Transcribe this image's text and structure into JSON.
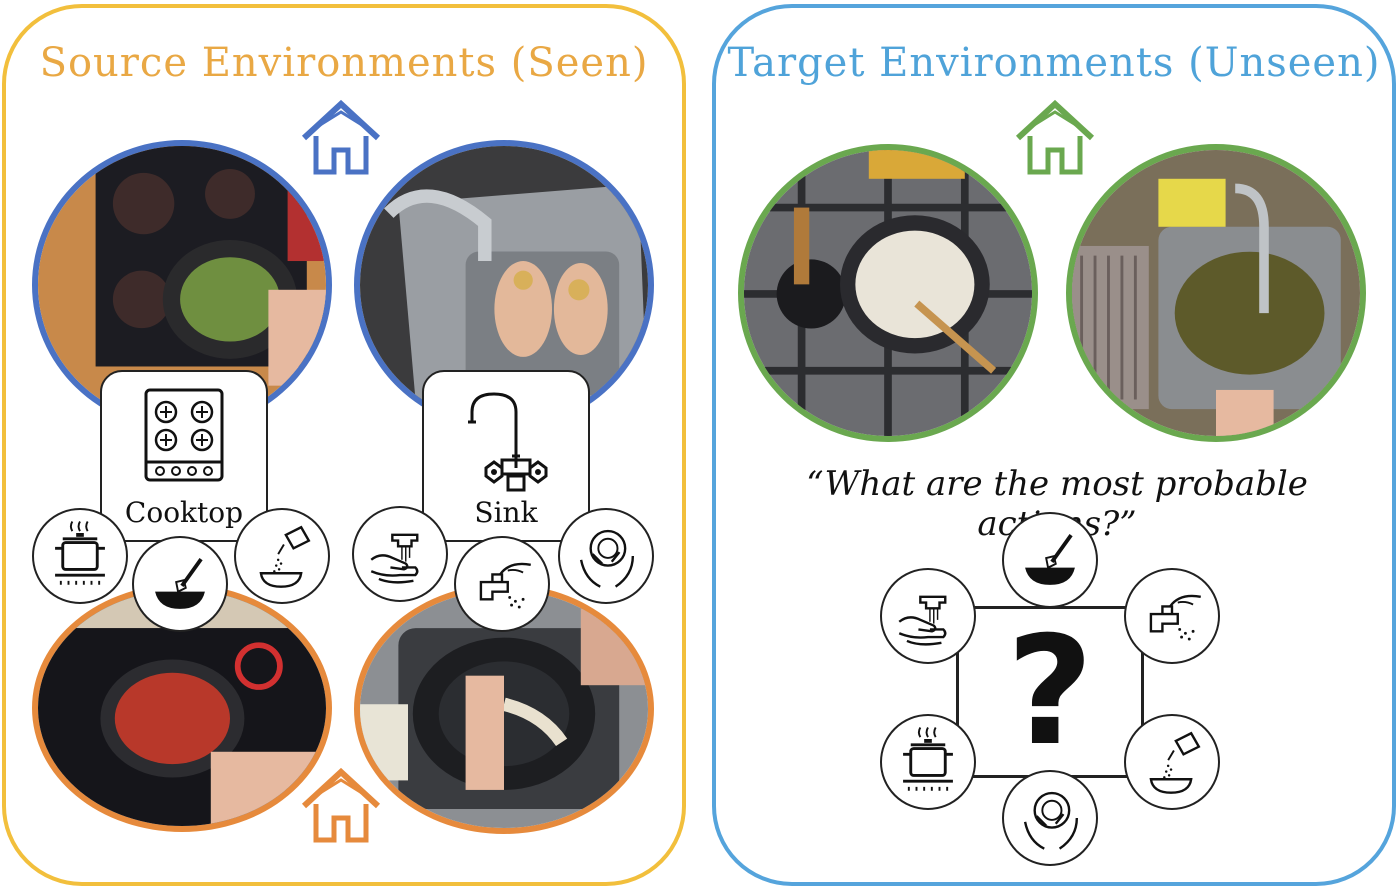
{
  "source": {
    "title": "Source Environments (Seen)"
  },
  "target": {
    "title": "Target Environments (Unseen)"
  },
  "locations": {
    "cooktop": "Cooktop",
    "sink": "Sink"
  },
  "question": "“What are the most probable actions?”",
  "question_mark": "?",
  "colors": {
    "source_border": "#f2bf3c",
    "target_border": "#55a4dc",
    "house_blue": "#4a72c4",
    "house_orange": "#e68a3c",
    "house_green": "#6aa84f"
  },
  "icons": [
    "house-icon",
    "cooktop-icon",
    "faucet-icon",
    "boil-pot-icon",
    "stir-pan-icon",
    "pour-seasoning-icon",
    "wash-hands-icon",
    "turn-tap-icon",
    "wash-dish-icon"
  ]
}
